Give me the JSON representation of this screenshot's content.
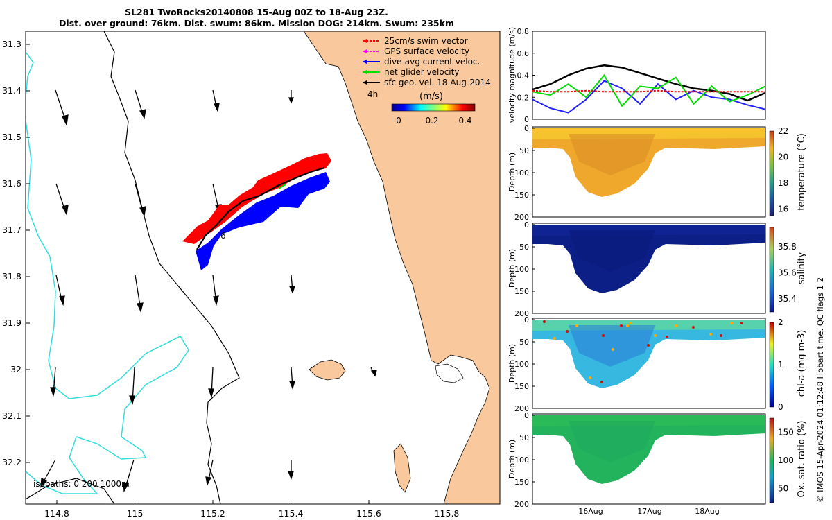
{
  "titles": {
    "line1": "SL281 TwoRocks20140808 15-Aug 00Z to 18-Aug 23Z.",
    "line2": "Dist. over ground: 76km. Dist. swum: 86km. Mission DOG: 214km. Swum: 235km"
  },
  "map": {
    "lat_ticks": [
      "31.3",
      "31.4",
      "31.5",
      "31.6",
      "31.7",
      "31.8",
      "31.9",
      "-32",
      "32.1",
      "32.2"
    ],
    "lon_ticks": [
      "114.8",
      "115",
      "115.2",
      "115.4",
      "115.6",
      "115.8"
    ],
    "isobaths_label": "isobaths: 0   200  1000m",
    "track_label_a": "4h",
    "track_label_b": "6",
    "legend": [
      {
        "label": "25cm/s swim vector",
        "color": "#ff0000"
      },
      {
        "label": "GPS surface velocity",
        "color": "#ff00ff"
      },
      {
        "label": "dive-avg current veloc.",
        "color": "#0000ff"
      },
      {
        "label": "net glider velocity",
        "color": "#00dd00"
      },
      {
        "label": "sfc geo. vel. 18-Aug-2014",
        "color": "#000000"
      }
    ],
    "colorbar_unit": "(m/s)",
    "colorbar_ticks": [
      "0",
      "0.2",
      "0.4"
    ],
    "land_color": "#f9c89c"
  },
  "chart_data": [
    {
      "type": "line",
      "title": "",
      "xlabel": "",
      "ylabel": "velocity magnitude (m/s)",
      "ylim": [
        0,
        0.8
      ],
      "yticks": [
        "0",
        "0.2",
        "0.4",
        "0.6",
        "0.8"
      ],
      "x_days": [
        0,
        0.3,
        0.6,
        0.9,
        1.2,
        1.5,
        1.8,
        2.1,
        2.4,
        2.7,
        3.0,
        3.3,
        3.6,
        3.9
      ],
      "series": [
        {
          "name": "sfc geo. vel.",
          "color": "#000000",
          "values": [
            0.27,
            0.32,
            0.4,
            0.46,
            0.49,
            0.47,
            0.42,
            0.37,
            0.32,
            0.28,
            0.26,
            0.23,
            0.17,
            0.24
          ]
        },
        {
          "name": "dive-avg current veloc.",
          "color": "#2020ff",
          "values": [
            0.18,
            0.1,
            0.06,
            0.18,
            0.35,
            0.28,
            0.14,
            0.32,
            0.18,
            0.26,
            0.2,
            0.18,
            0.13,
            0.09
          ]
        },
        {
          "name": "net glider velocity",
          "color": "#00dd00",
          "values": [
            0.25,
            0.22,
            0.32,
            0.2,
            0.4,
            0.12,
            0.3,
            0.28,
            0.38,
            0.14,
            0.3,
            0.16,
            0.22,
            0.3
          ]
        },
        {
          "name": "25cm/s swim vector",
          "color": "#ff0000",
          "values": [
            0.26,
            0.25,
            0.25,
            0.26,
            0.25,
            0.25,
            0.25,
            0.26,
            0.25,
            0.25,
            0.25,
            0.25,
            0.25,
            0.25
          ]
        }
      ]
    },
    {
      "type": "heatmap",
      "colorbar_label": "temperature (°C)",
      "ylabel": "Depth (m)",
      "yticks": [
        "0",
        "50",
        "100",
        "150",
        "200"
      ],
      "colorbar_ticks": [
        "16",
        "18",
        "20",
        "22"
      ],
      "clim": [
        15.5,
        22
      ]
    },
    {
      "type": "heatmap",
      "colorbar_label": "salinity",
      "ylabel": "Depth (m)",
      "yticks": [
        "0",
        "50",
        "100",
        "150",
        "200"
      ],
      "colorbar_ticks": [
        "35.4",
        "35.6",
        "35.8"
      ],
      "clim": [
        35.3,
        35.95
      ]
    },
    {
      "type": "heatmap",
      "colorbar_label": "chl-a (mg m-3)",
      "ylabel": "Depth (m)",
      "yticks": [
        "0",
        "50",
        "100",
        "150",
        "200"
      ],
      "colorbar_ticks": [
        "0",
        "1",
        "2"
      ],
      "clim": [
        0,
        2
      ]
    },
    {
      "type": "heatmap",
      "colorbar_label": "Ox. sat. ratio (%)",
      "ylabel": "Depth (m)",
      "yticks": [
        "0",
        "50",
        "100",
        "150",
        "200"
      ],
      "colorbar_ticks": [
        "50",
        "100",
        "150"
      ],
      "clim": [
        25,
        175
      ],
      "xticks": [
        "16Aug",
        "17Aug",
        "18Aug"
      ]
    }
  ],
  "imprint": "© IMOS 15-Apr-2024 01:12:48 Hobart time. QC flags 1  2"
}
